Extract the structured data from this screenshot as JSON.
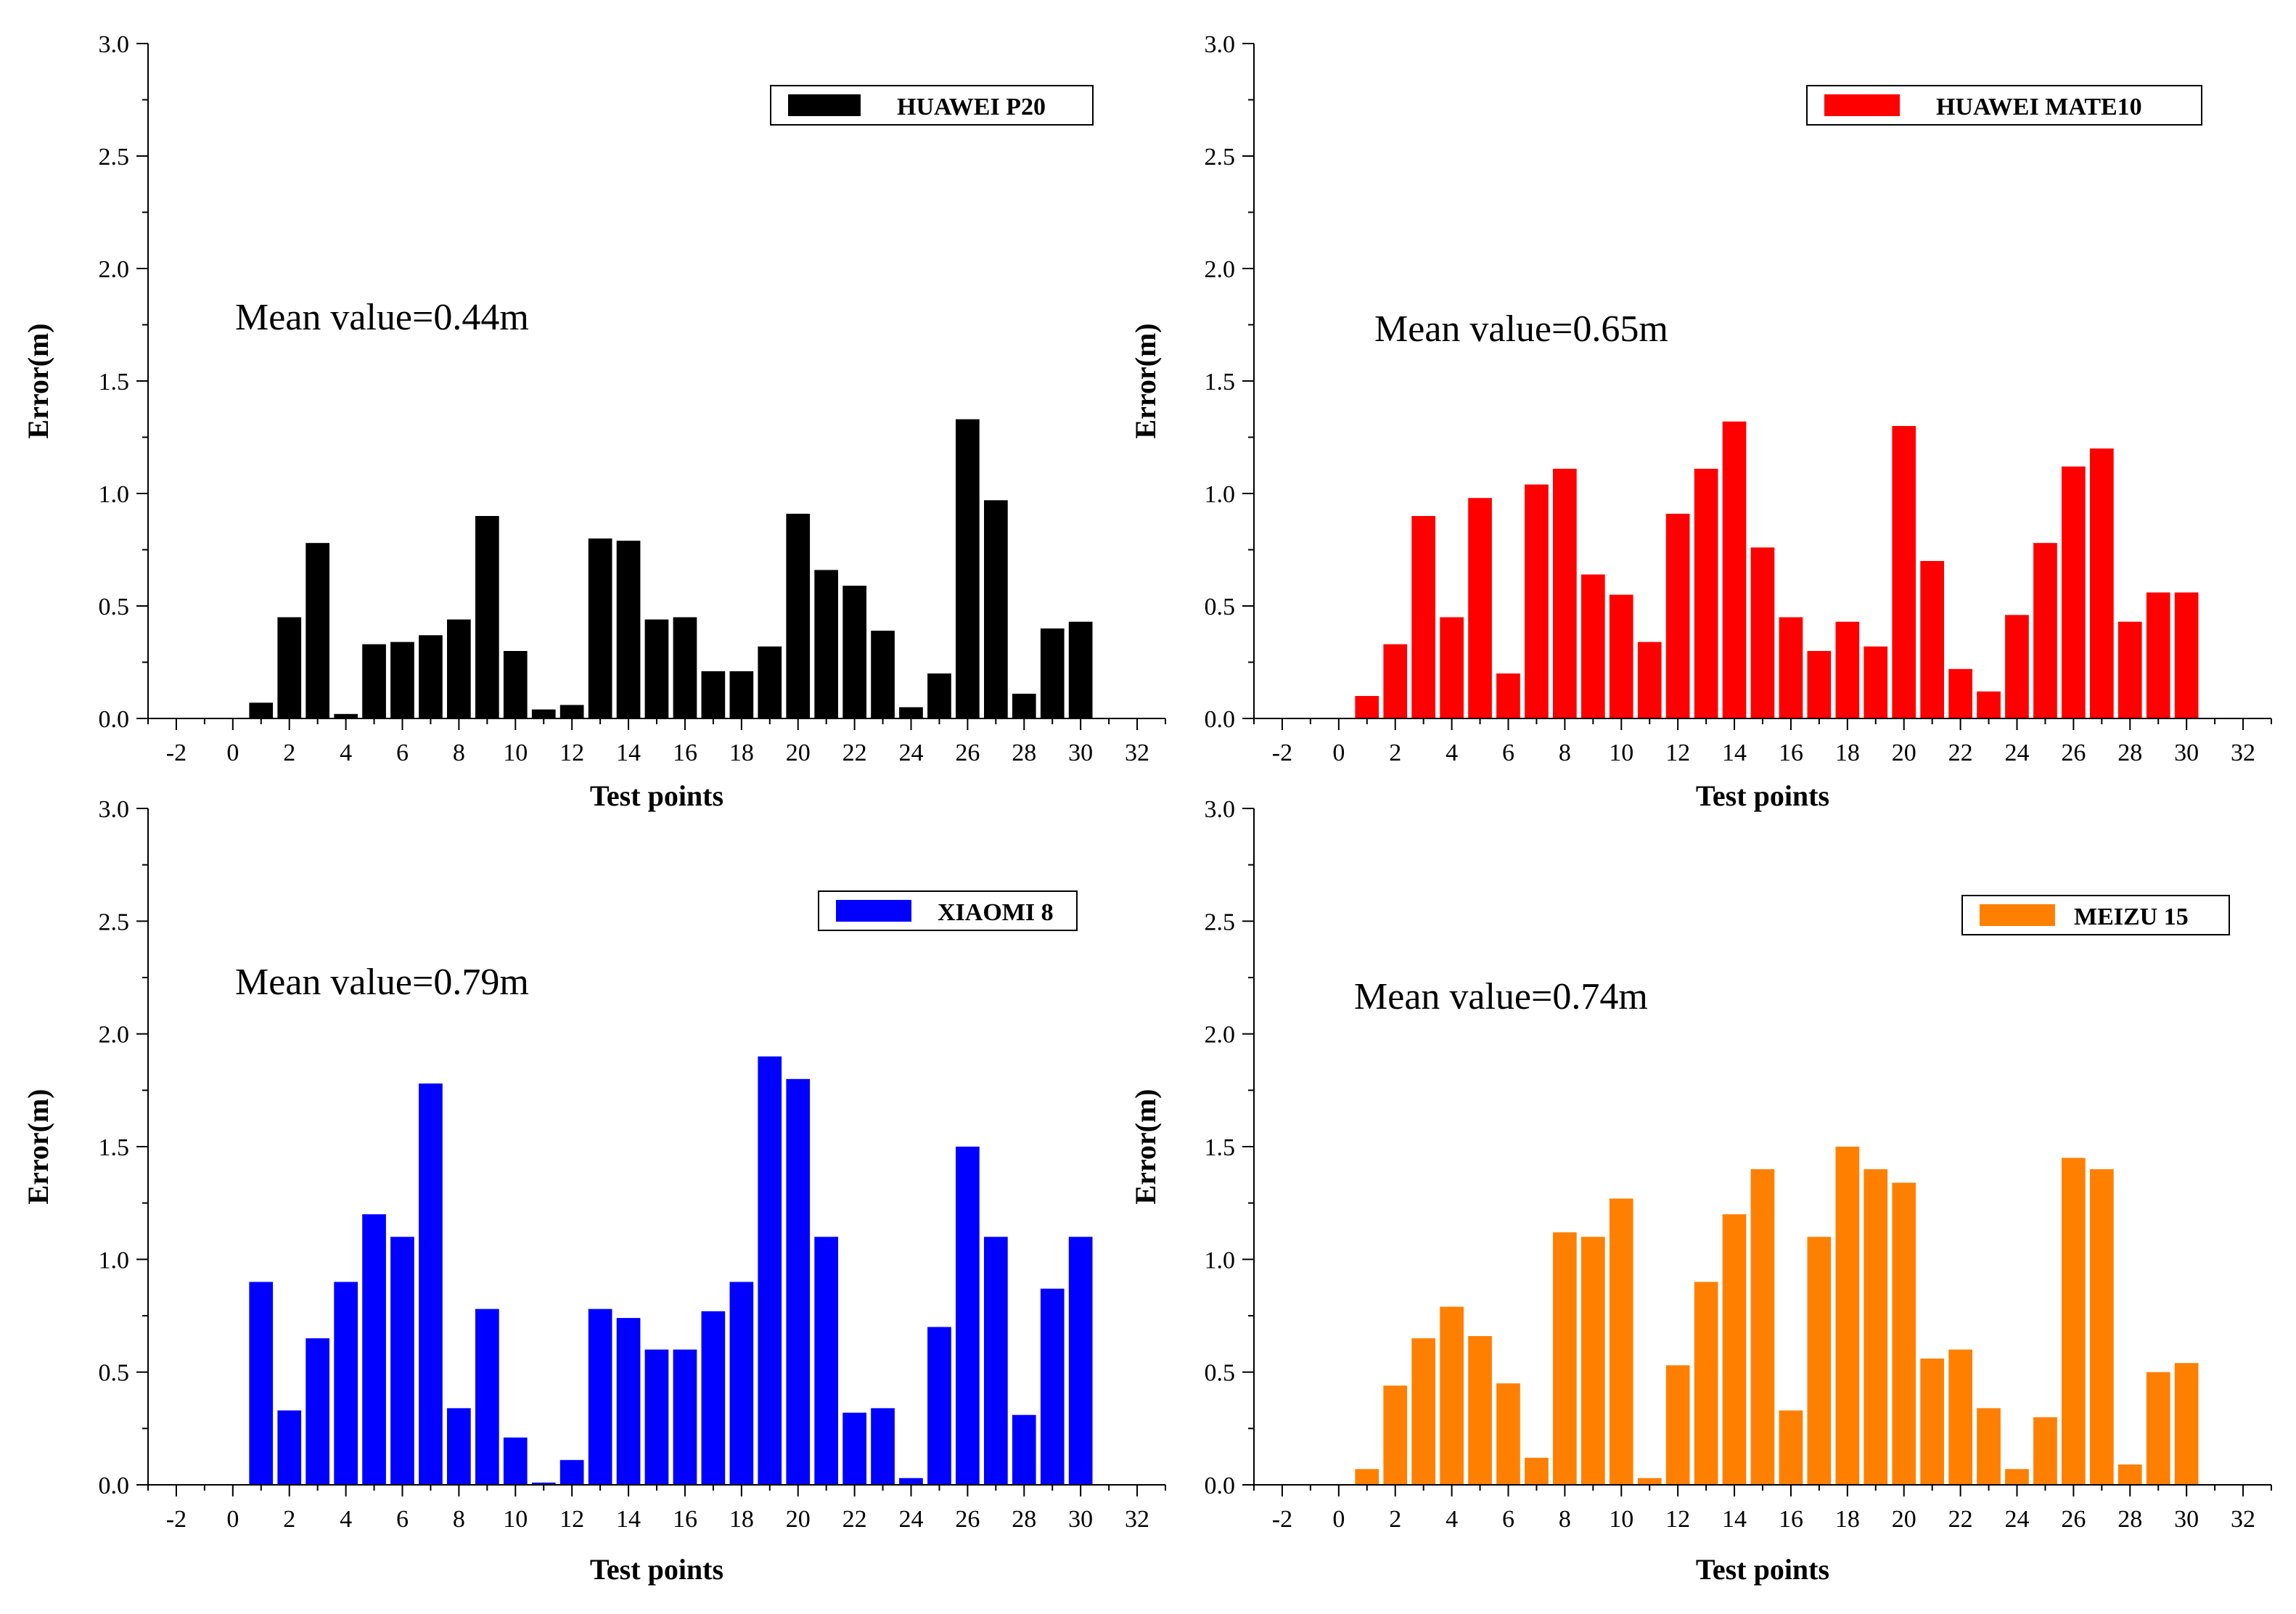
{
  "chart_data": [
    {
      "type": "bar",
      "title": "",
      "xlabel": "Test points",
      "ylabel": "Error(m)",
      "xlim": [
        -3,
        33
      ],
      "ylim": [
        0,
        3
      ],
      "xticks": [
        "-2",
        "0",
        "2",
        "4",
        "6",
        "8",
        "10",
        "12",
        "14",
        "16",
        "18",
        "20",
        "22",
        "24",
        "26",
        "28",
        "30",
        "32"
      ],
      "yticks": [
        "0.0",
        "0.5",
        "1.0",
        "1.5",
        "2.0",
        "2.5",
        "3.0"
      ],
      "legend": "HUAWEI P20",
      "legend_position": "top-right",
      "color": "#000000",
      "annotation": "Mean value=0.44m",
      "x": [
        1,
        2,
        3,
        4,
        5,
        6,
        7,
        8,
        9,
        10,
        11,
        12,
        13,
        14,
        15,
        16,
        17,
        18,
        19,
        20,
        21,
        22,
        23,
        24,
        25,
        26,
        27,
        28,
        29,
        30
      ],
      "values": [
        0.07,
        0.45,
        0.78,
        0.02,
        0.33,
        0.34,
        0.37,
        0.44,
        0.9,
        0.3,
        0.04,
        0.06,
        0.8,
        0.79,
        0.44,
        0.45,
        0.21,
        0.21,
        0.32,
        0.91,
        0.66,
        0.59,
        0.39,
        0.05,
        0.2,
        1.33,
        0.97,
        0.11,
        0.4,
        0.43
      ]
    },
    {
      "type": "bar",
      "title": "",
      "xlabel": "Test points",
      "ylabel": "Error(m)",
      "xlim": [
        -3,
        33
      ],
      "ylim": [
        0,
        3
      ],
      "xticks": [
        "-2",
        "0",
        "2",
        "4",
        "6",
        "8",
        "10",
        "12",
        "14",
        "16",
        "18",
        "20",
        "22",
        "24",
        "26",
        "28",
        "30",
        "32"
      ],
      "yticks": [
        "0.0",
        "0.5",
        "1.0",
        "1.5",
        "2.0",
        "2.5",
        "3.0"
      ],
      "legend": "HUAWEI MATE10",
      "legend_position": "top-right",
      "color": "#ff0000",
      "annotation": "Mean value=0.65m",
      "x": [
        1,
        2,
        3,
        4,
        5,
        6,
        7,
        8,
        9,
        10,
        11,
        12,
        13,
        14,
        15,
        16,
        17,
        18,
        19,
        20,
        21,
        22,
        23,
        24,
        25,
        26,
        27,
        28,
        29,
        30
      ],
      "values": [
        0.1,
        0.33,
        0.9,
        0.45,
        0.98,
        0.2,
        1.04,
        1.11,
        0.64,
        0.55,
        0.34,
        0.91,
        1.11,
        1.32,
        0.76,
        0.45,
        0.3,
        0.43,
        0.32,
        1.3,
        0.7,
        0.22,
        0.12,
        0.46,
        0.78,
        1.12,
        1.2,
        0.43,
        0.56,
        0.56
      ]
    },
    {
      "type": "bar",
      "title": "",
      "xlabel": "Test points",
      "ylabel": "Error(m)",
      "xlim": [
        -3,
        33
      ],
      "ylim": [
        0,
        3
      ],
      "xticks": [
        "-2",
        "0",
        "2",
        "4",
        "6",
        "8",
        "10",
        "12",
        "14",
        "16",
        "18",
        "20",
        "22",
        "24",
        "26",
        "28",
        "30",
        "32"
      ],
      "yticks": [
        "0.0",
        "0.5",
        "1.0",
        "1.5",
        "2.0",
        "2.5",
        "3.0"
      ],
      "legend": "XIAOMI 8",
      "legend_position": "top-right",
      "color": "#0000ff",
      "annotation": "Mean value=0.79m",
      "x": [
        1,
        2,
        3,
        4,
        5,
        6,
        7,
        8,
        9,
        10,
        11,
        12,
        13,
        14,
        15,
        16,
        17,
        18,
        19,
        20,
        21,
        22,
        23,
        24,
        25,
        26,
        27,
        28,
        29,
        30
      ],
      "values": [
        0.9,
        0.33,
        0.65,
        0.9,
        1.2,
        1.1,
        1.78,
        0.34,
        0.78,
        0.21,
        0.01,
        0.11,
        0.78,
        0.74,
        0.6,
        0.6,
        0.77,
        0.9,
        1.9,
        1.8,
        1.1,
        0.32,
        0.34,
        0.03,
        0.7,
        1.5,
        1.1,
        0.31,
        0.87,
        1.1
      ]
    },
    {
      "type": "bar",
      "title": "",
      "xlabel": "Test points",
      "ylabel": "Error(m)",
      "xlim": [
        -3,
        33
      ],
      "ylim": [
        0,
        3
      ],
      "xticks": [
        "-2",
        "0",
        "2",
        "4",
        "6",
        "8",
        "10",
        "12",
        "14",
        "16",
        "18",
        "20",
        "22",
        "24",
        "26",
        "28",
        "30",
        "32"
      ],
      "yticks": [
        "0.0",
        "0.5",
        "1.0",
        "1.5",
        "2.0",
        "2.5",
        "3.0"
      ],
      "legend": "MEIZU 15",
      "legend_position": "top-right",
      "color": "#ff8000",
      "annotation": "Mean value=0.74m",
      "x": [
        1,
        2,
        3,
        4,
        5,
        6,
        7,
        8,
        9,
        10,
        11,
        12,
        13,
        14,
        15,
        16,
        17,
        18,
        19,
        20,
        21,
        22,
        23,
        24,
        25,
        26,
        27,
        28,
        29,
        30
      ],
      "values": [
        0.07,
        0.44,
        0.65,
        0.79,
        0.66,
        0.45,
        0.12,
        1.12,
        1.1,
        1.27,
        0.03,
        0.53,
        0.9,
        1.2,
        1.4,
        0.33,
        1.1,
        1.5,
        1.4,
        1.34,
        0.56,
        0.6,
        0.34,
        0.07,
        0.3,
        1.45,
        1.4,
        0.09,
        0.5,
        0.54
      ]
    }
  ]
}
